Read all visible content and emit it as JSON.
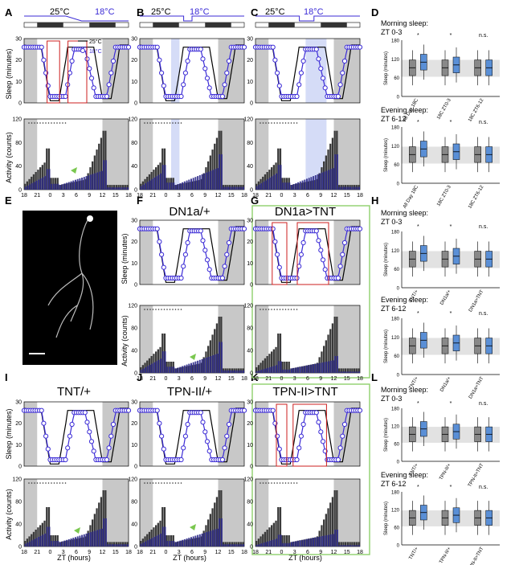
{
  "panel_labels": {
    "A": "A",
    "B": "B",
    "C": "C",
    "D": "D",
    "E": "E",
    "F": "F",
    "G": "G",
    "H": "H",
    "I": "I",
    "J": "J",
    "K": "K",
    "L": "L"
  },
  "temps": {
    "warm": "25°C",
    "cool": "18°C"
  },
  "axis": {
    "sleep_label": "Sleep (minutes)",
    "activity_label": "Activity (counts)",
    "xlabel": "ZT (hours)",
    "sleep_ticks": [
      "0",
      "10",
      "20",
      "30"
    ],
    "activity_ticks": [
      "0",
      "40",
      "80",
      "120"
    ],
    "zt_ticks": [
      "18",
      "21",
      "0",
      "3",
      "6",
      "9",
      "12",
      "15",
      "18"
    ]
  },
  "legend": {
    "warm": "25°C",
    "cool": "18°C"
  },
  "titles": {
    "F": "DN1a/+",
    "G": "DN1a>TNT",
    "I": "TNT/+",
    "J": "TPN-II/+",
    "K": "TPN-II>TNT"
  },
  "side": {
    "morning": "Morning sleep:",
    "morning_zt": "ZT 0-3",
    "evening": "Evening sleep:",
    "evening_zt": "ZT 6-12",
    "ylabel": "Sleep (minutes)",
    "sleep_ticks": [
      "0",
      "60",
      "120",
      "180"
    ],
    "D_categories": [
      "All Day 18C",
      "18C ZT0-3",
      "18C ZT6-12"
    ],
    "H_categories": [
      "TNT/+",
      "DN1a/+",
      "DN1a>TNT"
    ],
    "L_categories": [
      "TNT/+",
      "TPN-II/+",
      "TPN-II>TNT"
    ],
    "sig": "*",
    "ns": "n.s."
  },
  "colors": {
    "warm": "#000000",
    "cool": "#3b2bd6",
    "night": "#c8c8c8",
    "cool_shade": "#d5dcf7",
    "box": "#cc1f1f",
    "frame": "#8fd06b",
    "bar_dark": "#3a3a3a",
    "bar_blue": "#2e2a8a"
  },
  "chart_data": {
    "type": "line",
    "xlabel": "ZT (hours)",
    "x_ticks": [
      "18",
      "21",
      "0",
      "3",
      "6",
      "9",
      "12",
      "15",
      "18"
    ],
    "sleep_ylim": [
      0,
      30
    ],
    "activity_ylim": [
      0,
      120
    ],
    "series": [
      {
        "name": "25°C"
      },
      {
        "name": "18°C"
      }
    ]
  }
}
